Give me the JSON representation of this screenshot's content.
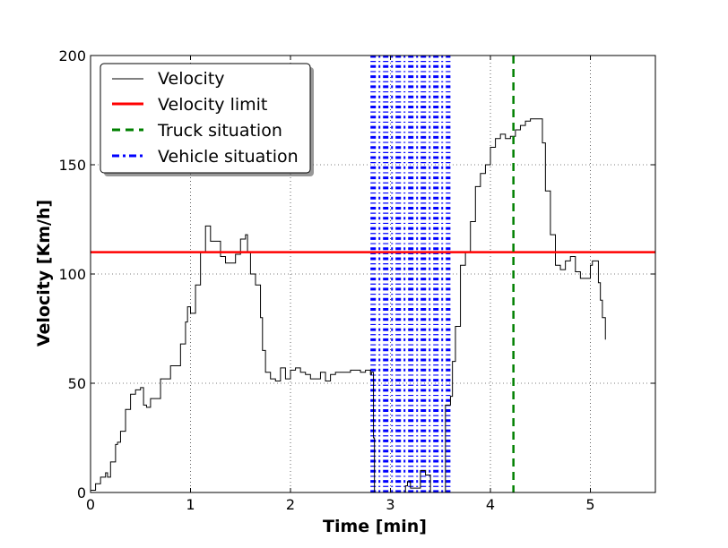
{
  "chart_data": {
    "type": "line",
    "title": "",
    "xlabel": "Time [min]",
    "ylabel": "Velocity [Km/h]",
    "xlim": [
      0,
      5.65
    ],
    "ylim": [
      0,
      200
    ],
    "grid": true,
    "legend_location": "upper-left",
    "x_tick_labels": [
      "0",
      "1",
      "2",
      "3",
      "4",
      "5"
    ],
    "y_tick_labels": [
      "0",
      "50",
      "100",
      "150",
      "200"
    ],
    "x_ticks": [
      0,
      1,
      2,
      3,
      4,
      5
    ],
    "y_ticks": [
      0,
      50,
      100,
      150,
      200
    ],
    "series": [
      {
        "name": "Velocity",
        "color": "#000000",
        "style": "solid",
        "x": [
          0,
          0.05,
          0.1,
          0.15,
          0.17,
          0.2,
          0.25,
          0.27,
          0.3,
          0.35,
          0.4,
          0.45,
          0.5,
          0.53,
          0.56,
          0.6,
          0.7,
          0.8,
          0.9,
          0.95,
          0.97,
          1.0,
          1.05,
          1.1,
          1.15,
          1.2,
          1.3,
          1.35,
          1.4,
          1.45,
          1.5,
          1.55,
          1.57,
          1.6,
          1.65,
          1.7,
          1.72,
          1.75,
          1.8,
          1.85,
          1.9,
          1.95,
          2.0,
          2.05,
          2.1,
          2.15,
          2.2,
          2.3,
          2.35,
          2.4,
          2.45,
          2.5,
          2.6,
          2.7,
          2.75,
          2.8,
          2.81,
          2.83,
          2.84,
          2.9,
          3.0,
          3.1,
          3.15,
          3.17,
          3.2,
          3.3,
          3.35,
          3.4,
          3.45,
          3.5,
          3.55,
          3.6,
          3.62,
          3.65,
          3.7,
          3.75,
          3.8,
          3.85,
          3.9,
          3.95,
          4.0,
          4.05,
          4.1,
          4.15,
          4.2,
          4.25,
          4.3,
          4.35,
          4.4,
          4.45,
          4.5,
          4.52,
          4.55,
          4.6,
          4.65,
          4.7,
          4.75,
          4.8,
          4.85,
          4.9,
          4.95,
          5.0,
          5.02,
          5.05,
          5.08,
          5.1,
          5.12,
          5.15
        ],
        "y": [
          1,
          4,
          7,
          9,
          7,
          14,
          22,
          23,
          28,
          38,
          45,
          47,
          48,
          40,
          39,
          43,
          52,
          58,
          68,
          78,
          85,
          82,
          95,
          110,
          122,
          115,
          108,
          105,
          105,
          109,
          116,
          118,
          110,
          100,
          95,
          80,
          65,
          55,
          52,
          51,
          57,
          52,
          56,
          57,
          55,
          54,
          52,
          55,
          51,
          54,
          55,
          55,
          56,
          55,
          56,
          54,
          55,
          25,
          0,
          0,
          0,
          0,
          3,
          5,
          2,
          10,
          8,
          0,
          0,
          0,
          40,
          44,
          60,
          76,
          104,
          110,
          124,
          140,
          146,
          150,
          158,
          162,
          164,
          162,
          163,
          166,
          168,
          170,
          171,
          171,
          171,
          160,
          138,
          118,
          104,
          102,
          106,
          108,
          101,
          98,
          98,
          104,
          106,
          106,
          96,
          88,
          80,
          70
        ]
      }
    ],
    "reference_lines": [
      {
        "name": "Velocity limit",
        "orientation": "horizontal",
        "value": 110,
        "color": "#ff0000",
        "style": "solid"
      },
      {
        "name": "Truck situation",
        "orientation": "vertical",
        "value": 4.23,
        "color": "#008000",
        "style": "dashed"
      },
      {
        "name": "Vehicle situation",
        "orientation": "vertical-band",
        "range": [
          2.8,
          3.6
        ],
        "color": "#0000ff",
        "style": "dash-dot"
      }
    ],
    "legend": [
      "Velocity",
      "Velocity limit",
      "Truck situation",
      "Vehicle situation"
    ]
  }
}
